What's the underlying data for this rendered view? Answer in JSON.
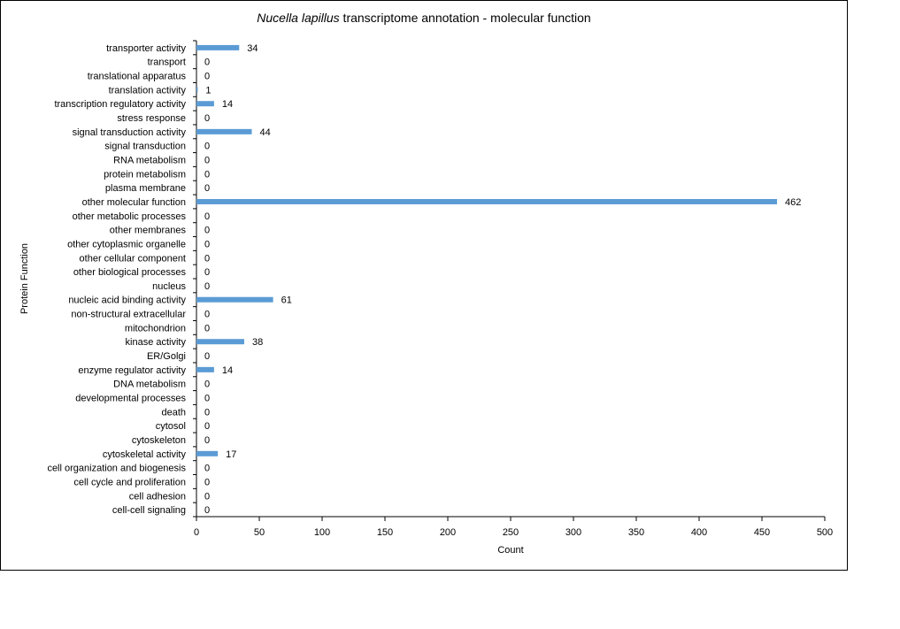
{
  "colors": {
    "bar": "#5b9bd5",
    "axis": "#000000",
    "background": "#ffffff"
  },
  "chart_data": {
    "type": "bar",
    "orientation": "horizontal",
    "title_italic": "Nucella lapillus",
    "title_rest": " transcriptome annotation  - molecular function",
    "xlabel": "Count",
    "ylabel": "Protein Function",
    "xlim": [
      0,
      500
    ],
    "xticks": [
      "0",
      "50",
      "100",
      "150",
      "200",
      "250",
      "300",
      "350",
      "400",
      "450",
      "500"
    ],
    "grid": false,
    "data_labels": true,
    "categories": [
      "transporter activity",
      "transport",
      "translational apparatus",
      "translation activity",
      "transcription regulatory activity",
      "stress response",
      "signal transduction activity",
      "signal transduction",
      "RNA metabolism",
      "protein metabolism",
      "plasma membrane",
      "other molecular function",
      "other metabolic processes",
      "other membranes",
      "other cytoplasmic organelle",
      "other cellular component",
      "other biological processes",
      "nucleus",
      "nucleic acid binding activity",
      "non-structural extracellular",
      "mitochondrion",
      "kinase activity",
      "ER/Golgi",
      "enzyme regulator activity",
      "DNA metabolism",
      "developmental processes",
      "death",
      "cytosol",
      "cytoskeleton",
      "cytoskeletal activity",
      "cell organization and biogenesis",
      "cell cycle and proliferation",
      "cell adhesion",
      "cell-cell signaling"
    ],
    "values": [
      34,
      0,
      0,
      1,
      14,
      0,
      44,
      0,
      0,
      0,
      0,
      462,
      0,
      0,
      0,
      0,
      0,
      0,
      61,
      0,
      0,
      38,
      0,
      14,
      0,
      0,
      0,
      0,
      0,
      17,
      0,
      0,
      0,
      0
    ]
  }
}
